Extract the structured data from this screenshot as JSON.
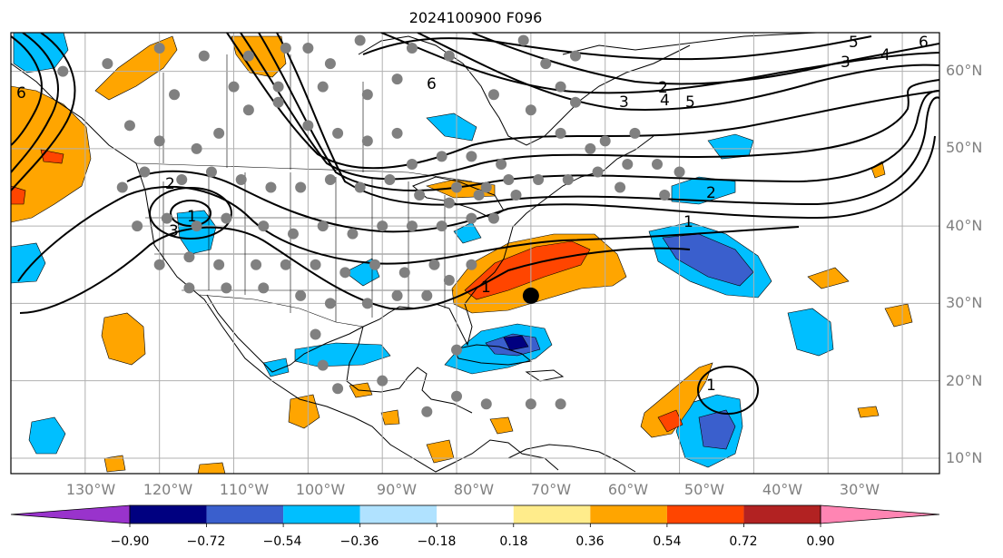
{
  "title": "2024100900 F096",
  "map": {
    "lon_range": [
      -140,
      -15
    ],
    "lat_range": [
      8,
      65
    ],
    "lat_ticks": [
      "60°N",
      "50°N",
      "40°N",
      "30°N",
      "20°N",
      "10°N"
    ],
    "lon_ticks": [
      "130°W",
      "120°W",
      "110°W",
      "100°W",
      "90°W",
      "80°W",
      "70°W",
      "60°W",
      "50°W",
      "40°W",
      "30°W"
    ],
    "grid": true,
    "contour_labels": [
      "5",
      "6",
      "4",
      "3",
      "2",
      "4",
      "5",
      "3",
      "6",
      "2",
      "1",
      "2",
      "1",
      "3",
      "1",
      "1",
      "6"
    ],
    "marker": {
      "type": "black-dot",
      "lon": -70,
      "lat": 31
    }
  },
  "colorbar": {
    "levels": [
      "−0.90",
      "−0.72",
      "−0.54",
      "−0.36",
      "−0.18",
      "0.18",
      "0.36",
      "0.54",
      "0.72",
      "0.90"
    ],
    "colors": [
      "#9933cc",
      "#000080",
      "#3a5fcd",
      "#00bfff",
      "#b0e2ff",
      "#ffffff",
      "#ffec8b",
      "#ffa500",
      "#ff4500",
      "#b22222",
      "#ff85b3"
    ]
  }
}
